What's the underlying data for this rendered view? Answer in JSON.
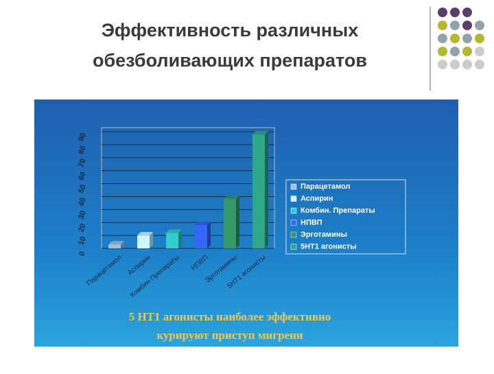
{
  "title": [
    "Эффективность различных",
    "обезболивающих препаратов"
  ],
  "chart_data": {
    "type": "bar",
    "categories": [
      "Парацетамол",
      "Аспирин",
      "Комбин Препараты",
      "НПВП",
      "Эрготамины",
      "5НТ1 агонисты"
    ],
    "values": [
      3,
      10,
      12,
      18,
      38,
      88
    ],
    "legend": [
      {
        "name": "Парацетамол",
        "color": "#9cc3e6"
      },
      {
        "name": "Аспирин",
        "color": "#ccf5ff"
      },
      {
        "name": "Комбин. Препараты",
        "color": "#33cccc"
      },
      {
        "name": "НПВП",
        "color": "#3366ff"
      },
      {
        "name": "Эрготамины",
        "color": "#339966"
      },
      {
        "name": "5НТ1 агонисты",
        "color": "#2fa88a"
      }
    ],
    "ylim": [
      0,
      90
    ],
    "yticks": [
      0,
      10,
      20,
      30,
      40,
      50,
      60,
      70,
      80,
      90
    ],
    "grid": true
  },
  "caption": [
    "5 НТ1 агонисты наиболее эффективно",
    "курируют приступ мигрени"
  ]
}
